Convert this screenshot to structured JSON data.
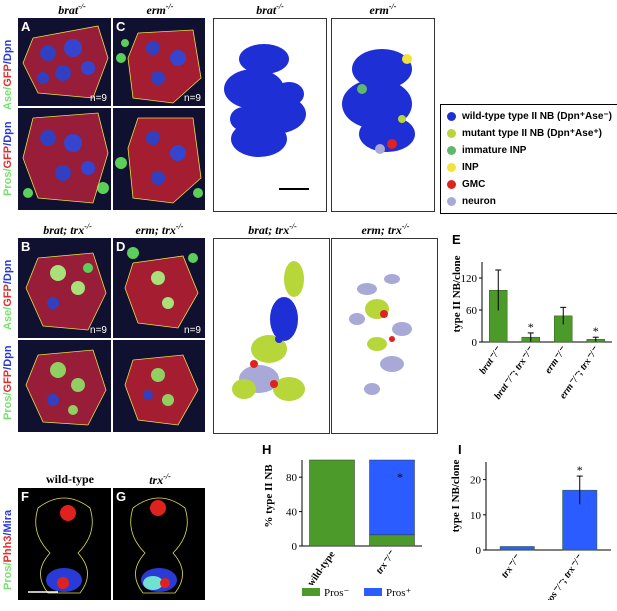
{
  "column_titles": {
    "brat": "brat",
    "erm": "erm",
    "brat_render": "brat",
    "erm_render": "erm",
    "brat_trx": "brat; trx",
    "erm_trx": "erm; trx",
    "brat_trx_render": "brat; trx",
    "erm_trx_render": "erm; trx",
    "superscript": "-/-"
  },
  "panel_letters": {
    "A": "A",
    "B": "B",
    "C": "C",
    "D": "D",
    "E": "E",
    "F": "F",
    "G": "G",
    "H": "H",
    "I": "I"
  },
  "row_labels": {
    "ase_gfp_dpn": [
      "Ase/",
      "GFP",
      "/Dpn"
    ],
    "pros_gfp_dpn": [
      "Pros/",
      "GFP",
      "/Dpn"
    ],
    "pros_phh3_mira": [
      "Pros/",
      "Phh3",
      "/Mira"
    ]
  },
  "n_labels": {
    "A": "n=9",
    "C": "n=9",
    "B": "n=9",
    "D": "n=9"
  },
  "fg_titles": {
    "wild_type": "wild-type",
    "trx": "trx"
  },
  "legend": [
    {
      "label": "wild-type type II NB (Dpn⁺Ase⁻)",
      "color": "#1f2fd6"
    },
    {
      "label": "mutant type II NB (Dpn⁺Ase⁺)",
      "color": "#b7d63a"
    },
    {
      "label": "immature INP",
      "color": "#5fb86a"
    },
    {
      "label": "INP",
      "color": "#f3e23a"
    },
    {
      "label": "GMC",
      "color": "#e0221f"
    },
    {
      "label": "neuron",
      "color": "#a8a9d6"
    }
  ],
  "chart_data": [
    {
      "id": "E",
      "type": "bar",
      "ylabel": "type II NB/clone",
      "ylim": [
        0,
        150
      ],
      "yticks": [
        0,
        60,
        120
      ],
      "categories": [
        "brat⁻/⁻",
        "brat⁻/⁻; trx⁻/⁻",
        "erm⁻/⁻",
        "erm⁻/⁻; trx⁻/⁻"
      ],
      "values": [
        97,
        9,
        49,
        5
      ],
      "errors": [
        38,
        8,
        16,
        4
      ],
      "significance": [
        "",
        "*",
        "",
        "*"
      ],
      "color": "#4c9a2a"
    },
    {
      "id": "H",
      "type": "bar",
      "ylabel": "% type II NB",
      "ylim": [
        0,
        100
      ],
      "yticks": [
        0,
        40,
        80
      ],
      "categories": [
        "wild-type",
        "trx⁻/⁻"
      ],
      "series": [
        {
          "name": "Pros⁻",
          "values": [
            100,
            13
          ],
          "color": "#4c9a2a"
        },
        {
          "name": "Pros⁺",
          "values": [
            0,
            87
          ],
          "color": "#2a5cff"
        }
      ],
      "significance": [
        "",
        "*"
      ],
      "legend": [
        "Pros⁻",
        "Pros⁺"
      ]
    },
    {
      "id": "I",
      "type": "bar",
      "ylabel": "type I NB/clone",
      "ylim": [
        0,
        25
      ],
      "yticks": [
        0,
        10,
        20
      ],
      "categories": [
        "trx⁻/⁻",
        "pros⁻/⁻; trx⁻/⁻"
      ],
      "values": [
        1,
        17
      ],
      "errors": [
        0,
        4
      ],
      "significance": [
        "",
        "*"
      ],
      "color": "#2a5cff"
    }
  ]
}
